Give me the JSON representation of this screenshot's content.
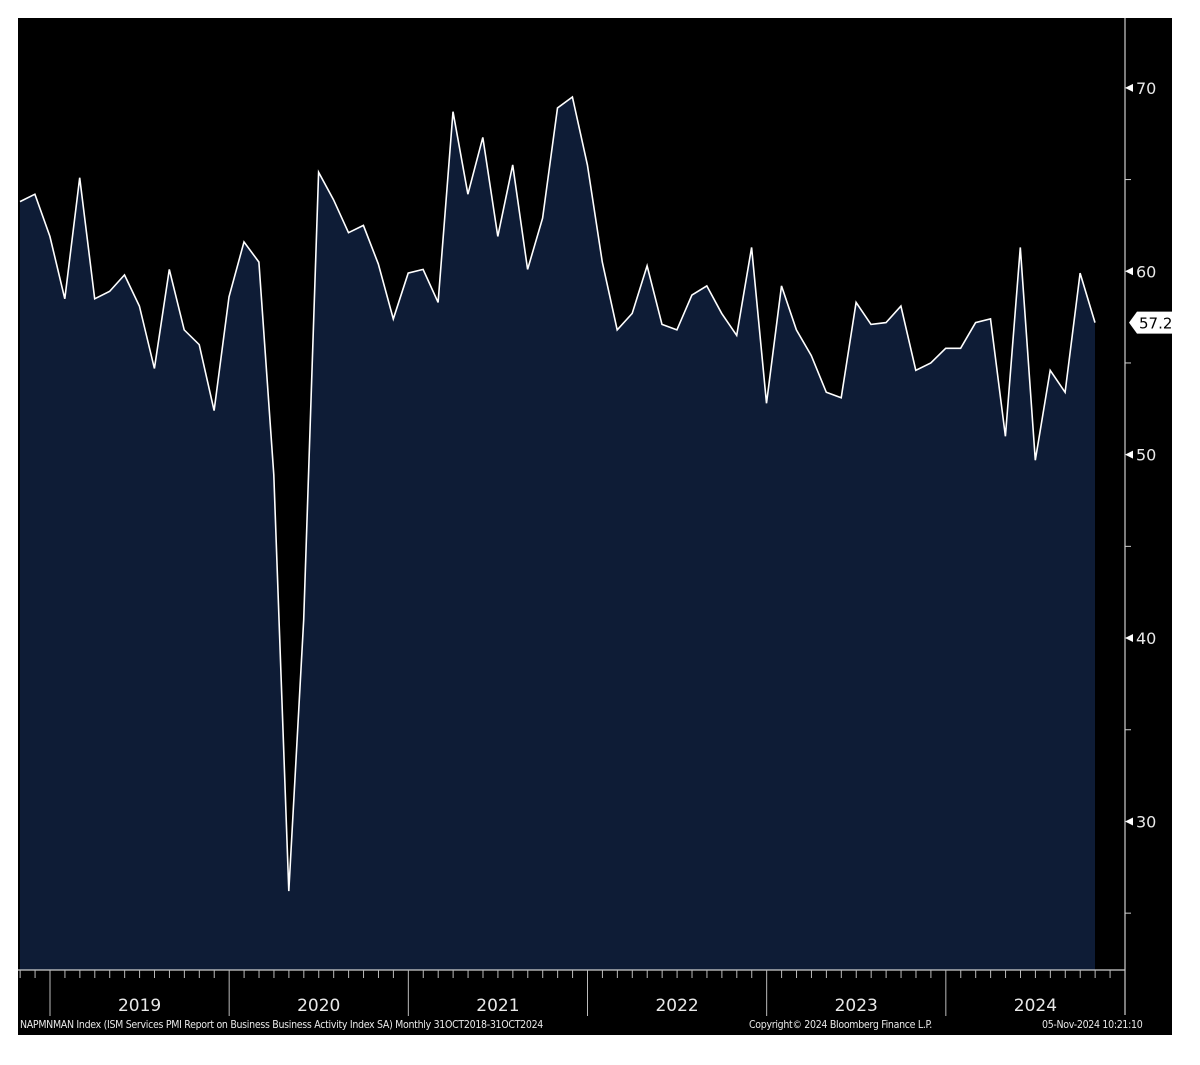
{
  "chart_data": {
    "type": "area",
    "title": "NAPMNMAN Index (ISM Services PMI Report on Business Business Activity Index SA)",
    "frequency": "Monthly",
    "range": "31OCT2018-31OCT2024",
    "x_start": "2018-10",
    "x_end": "2024-10",
    "year_labels": [
      "2019",
      "2020",
      "2021",
      "2022",
      "2023",
      "2024"
    ],
    "y_ticks": [
      "70",
      "60",
      "50",
      "40",
      "30"
    ],
    "ylim": [
      21.9,
      73.7
    ],
    "last_value_label": "57.2",
    "values": [
      63.8,
      64.2,
      61.9,
      58.5,
      65.1,
      58.5,
      58.9,
      59.8,
      58.1,
      54.7,
      60.1,
      56.8,
      56.0,
      52.4,
      58.6,
      61.6,
      60.5,
      48.9,
      26.2,
      41.0,
      65.4,
      63.9,
      62.1,
      62.5,
      60.4,
      57.4,
      59.9,
      60.1,
      58.3,
      68.7,
      64.2,
      67.3,
      61.9,
      65.8,
      60.1,
      62.9,
      68.9,
      69.5,
      65.8,
      60.5,
      56.8,
      57.7,
      60.3,
      57.1,
      56.8,
      58.7,
      59.2,
      57.7,
      56.5,
      61.3,
      52.8,
      59.2,
      56.8,
      55.4,
      53.4,
      53.1,
      58.3,
      57.1,
      57.2,
      58.1,
      54.6,
      55.0,
      55.8,
      55.8,
      57.2,
      57.4,
      51.0,
      61.3,
      49.7,
      54.6,
      53.4,
      59.9,
      57.2
    ],
    "colors": {
      "background": "#000000",
      "fill": "#0e1c36",
      "line": "#ffffff",
      "text": "#e8e8e8"
    },
    "grid": false
  },
  "footer": {
    "description": "NAPMNMAN Index (ISM Services PMI Report on Business Business Activity Index SA)  Monthly 31OCT2018-31OCT2024",
    "copyright": "Copyright© 2024 Bloomberg Finance L.P.",
    "timestamp": "05-Nov-2024 10:21:10"
  }
}
